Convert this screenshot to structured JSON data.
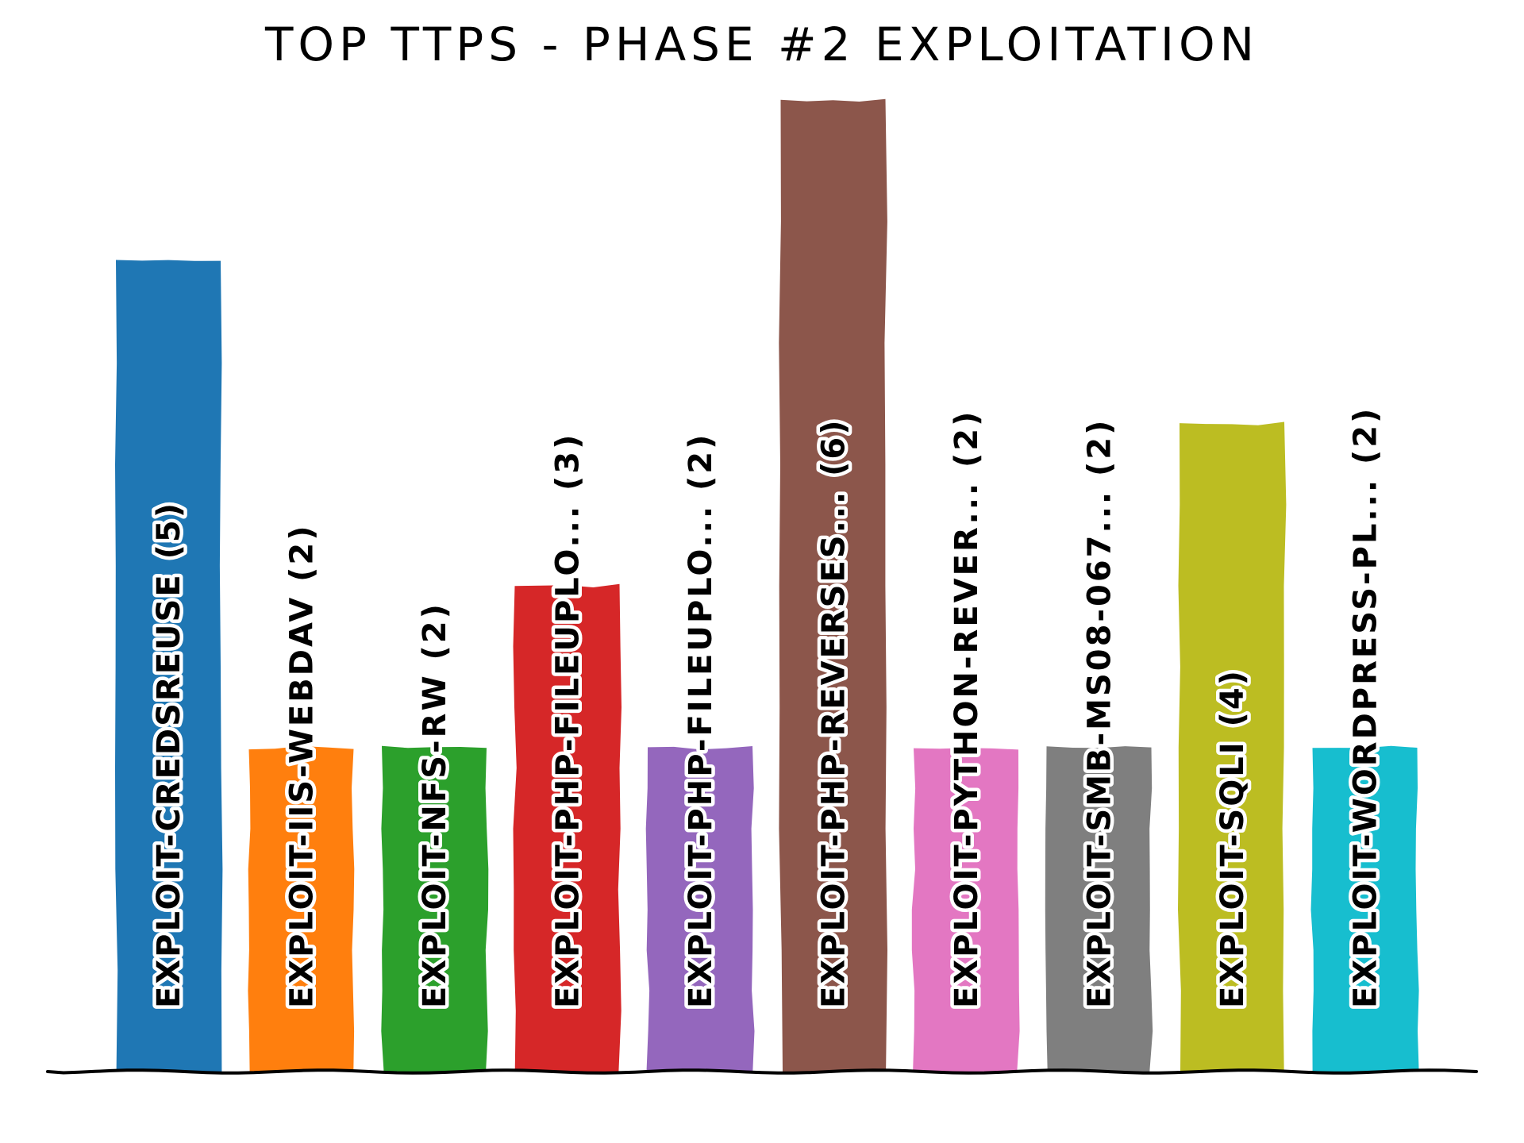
{
  "chart_data": {
    "type": "bar",
    "title": "TOP TTPS - PHASE #2 EXPLOITATION",
    "xlabel": "",
    "ylabel": "",
    "ylim": [
      0,
      6
    ],
    "grid": false,
    "legend": "none",
    "style": "xkcd hand-drawn",
    "label_placement": "vertical text inside each bar",
    "categories": [
      "EXPLOIT-CREDSREUSE",
      "EXPLOIT-IIS-WEBDAV",
      "EXPLOIT-NFS-RW",
      "EXPLOIT-PHP-FILEUPLO...",
      "EXPLOIT-PHP-FILEUPLO...",
      "EXPLOIT-PHP-REVERSES...",
      "EXPLOIT-PYTHON-REVER...",
      "EXPLOIT-SMB-MS08-067...",
      "EXPLOIT-SQLI",
      "EXPLOIT-WORDPRESS-PL..."
    ],
    "values": [
      5,
      2,
      2,
      3,
      2,
      6,
      2,
      2,
      4,
      2
    ],
    "bar_labels": [
      "EXPLOIT-CREDSREUSE (5)",
      "EXPLOIT-IIS-WEBDAV (2)",
      "EXPLOIT-NFS-RW (2)",
      "EXPLOIT-PHP-FILEUPLO... (3)",
      "EXPLOIT-PHP-FILEUPLO... (2)",
      "EXPLOIT-PHP-REVERSES... (6)",
      "EXPLOIT-PYTHON-REVER... (2)",
      "EXPLOIT-SMB-MS08-067... (2)",
      "EXPLOIT-SQLI (4)",
      "EXPLOIT-WORDPRESS-PL... (2)"
    ],
    "colors": [
      "#1f77b4",
      "#ff7f0e",
      "#2ca02c",
      "#d62728",
      "#9467bd",
      "#8c564b",
      "#e377c2",
      "#7f7f7f",
      "#bcbd22",
      "#17becf"
    ]
  }
}
